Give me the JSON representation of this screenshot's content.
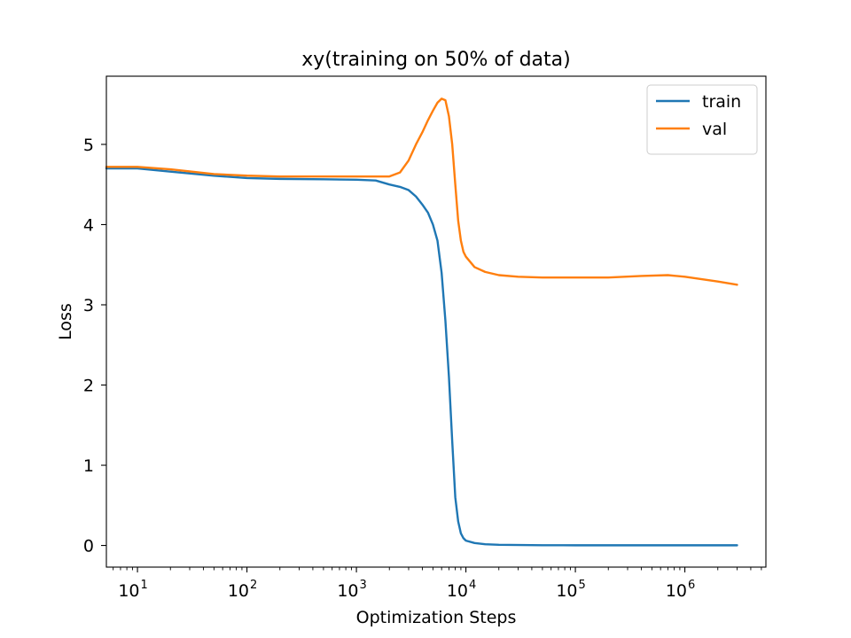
{
  "chart_data": {
    "type": "line",
    "title": "xy(training on 50% of data)",
    "xlabel": "Optimization Steps",
    "ylabel": "Loss",
    "xscale": "log",
    "xlim": [
      5.2,
      5500000
    ],
    "ylim": [
      -0.27,
      5.85
    ],
    "x_ticks": [
      {
        "value": 10,
        "base": "10",
        "exp": "1"
      },
      {
        "value": 100,
        "base": "10",
        "exp": "2"
      },
      {
        "value": 1000,
        "base": "10",
        "exp": "3"
      },
      {
        "value": 10000,
        "base": "10",
        "exp": "4"
      },
      {
        "value": 100000,
        "base": "10",
        "exp": "5"
      },
      {
        "value": 1000000,
        "base": "10",
        "exp": "6"
      }
    ],
    "y_ticks": [
      0,
      1,
      2,
      3,
      4,
      5
    ],
    "grid": false,
    "legend": {
      "position": "top-right",
      "entries": [
        "train",
        "val"
      ]
    },
    "series": [
      {
        "name": "train",
        "color": "#1f77b4",
        "x": [
          5.2,
          10,
          20,
          50,
          100,
          200,
          500,
          1000,
          1500,
          2000,
          2500,
          3000,
          3500,
          4000,
          4500,
          5000,
          5500,
          6000,
          6500,
          7000,
          7500,
          8000,
          8500,
          9000,
          9500,
          10000,
          12000,
          15000,
          20000,
          50000,
          100000,
          1000000,
          3000000
        ],
        "y": [
          4.7,
          4.7,
          4.66,
          4.61,
          4.58,
          4.57,
          4.565,
          4.56,
          4.55,
          4.5,
          4.47,
          4.43,
          4.35,
          4.25,
          4.15,
          4.0,
          3.8,
          3.4,
          2.8,
          2.1,
          1.3,
          0.6,
          0.3,
          0.15,
          0.09,
          0.06,
          0.03,
          0.015,
          0.008,
          0.003,
          0.002,
          0.002,
          0.002
        ]
      },
      {
        "name": "val",
        "color": "#ff7f0e",
        "x": [
          5.2,
          10,
          20,
          50,
          100,
          200,
          500,
          1000,
          1500,
          2000,
          2500,
          3000,
          3500,
          4000,
          4500,
          5000,
          5500,
          6000,
          6500,
          7000,
          7500,
          8000,
          8500,
          9000,
          9500,
          10000,
          12000,
          15000,
          20000,
          30000,
          50000,
          100000,
          200000,
          400000,
          700000,
          1000000,
          2000000,
          3000000
        ],
        "y": [
          4.72,
          4.72,
          4.69,
          4.63,
          4.61,
          4.6,
          4.6,
          4.6,
          4.6,
          4.6,
          4.65,
          4.8,
          5.0,
          5.15,
          5.3,
          5.42,
          5.52,
          5.57,
          5.55,
          5.35,
          5.0,
          4.5,
          4.05,
          3.8,
          3.66,
          3.6,
          3.47,
          3.41,
          3.37,
          3.35,
          3.34,
          3.34,
          3.34,
          3.36,
          3.37,
          3.35,
          3.29,
          3.25
        ]
      }
    ]
  }
}
